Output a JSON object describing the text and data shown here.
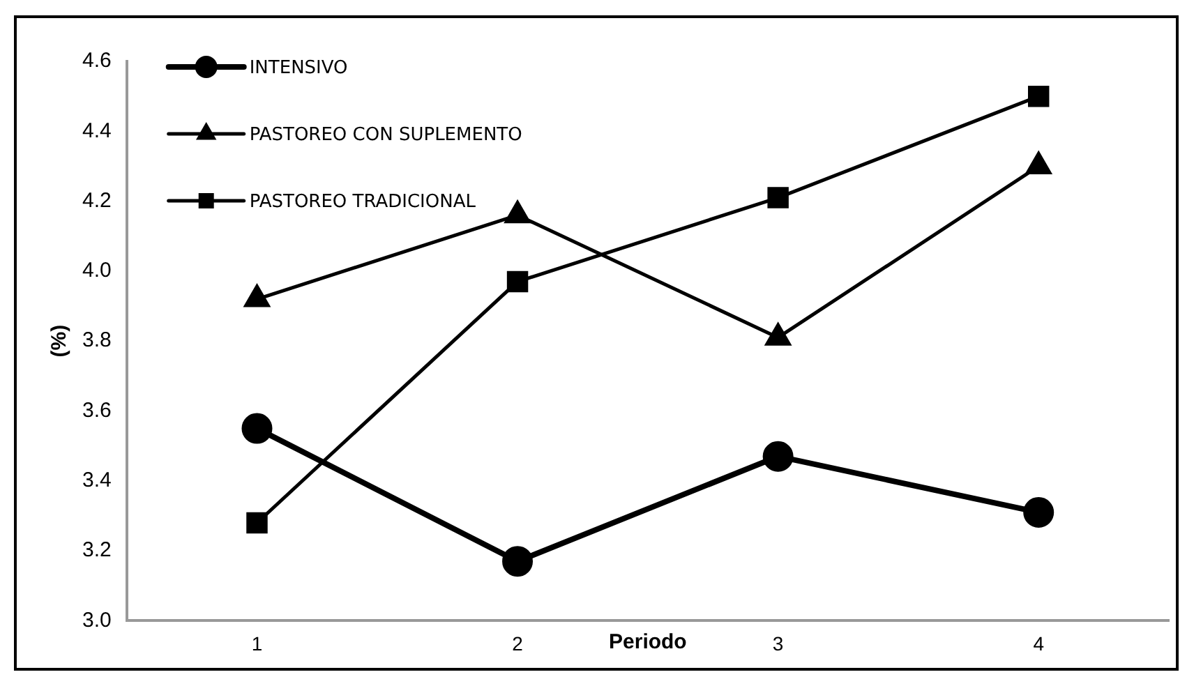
{
  "chart_data": {
    "type": "line",
    "xlabel": "Periodo",
    "ylabel": "(%)",
    "categories": [
      "1",
      "2",
      "3",
      "4"
    ],
    "series": [
      {
        "name": "INTENSIVO",
        "color": "#000000",
        "marker": "circle",
        "values": [
          3.55,
          3.17,
          3.47,
          3.31
        ]
      },
      {
        "name": "PASTOREO CON SUPLEMENTO",
        "color": "#000000",
        "marker": "triangle",
        "values": [
          3.92,
          4.16,
          3.81,
          4.3
        ]
      },
      {
        "name": "PASTOREO TRADICIONAL",
        "color": "#000000",
        "marker": "square",
        "values": [
          3.28,
          3.97,
          4.21,
          4.5
        ]
      }
    ],
    "ylim": [
      3.0,
      4.6
    ],
    "yticks": [
      {
        "value": 3.0,
        "label": "3.0"
      },
      {
        "value": 3.2,
        "label": "3.2"
      },
      {
        "value": 3.4,
        "label": "3.4"
      },
      {
        "value": 3.6,
        "label": "3.6"
      },
      {
        "value": 3.8,
        "label": "3.8"
      },
      {
        "value": 4.0,
        "label": "4.0"
      },
      {
        "value": 4.2,
        "label": "4.2"
      },
      {
        "value": 4.4,
        "label": "4.4"
      },
      {
        "value": 4.6,
        "label": "4.6"
      }
    ],
    "grid": false,
    "legend": "top left"
  }
}
